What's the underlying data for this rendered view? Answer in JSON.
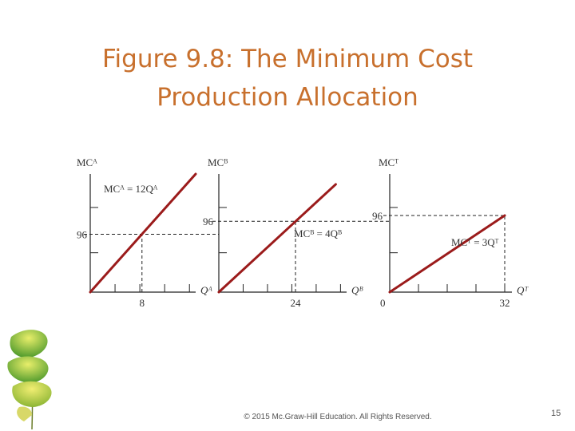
{
  "slide": {
    "title_line1": "Figure 9.8: The Minimum Cost",
    "title_line2": "Production Allocation",
    "footer": "© 2015 Mc.Graw-Hill Education. All Rights Reserved.",
    "page_number": "15"
  },
  "colors": {
    "title": "#c8702d",
    "curve": "#9b1b1b",
    "axis": "#222222"
  },
  "chart_data": [
    {
      "type": "line",
      "ylabel": "MCᴬ",
      "xlabel": "Qᴬ",
      "equation_label": "MCᴬ = 12Qᴬ",
      "xlim": [
        0,
        16.3
      ],
      "ylim": [
        0,
        196
      ],
      "series": [
        {
          "x": [
            0,
            16.3
          ],
          "y": [
            0,
            196
          ]
        }
      ],
      "equilibrium": {
        "x": 8,
        "y": 96,
        "x_label": "8",
        "y_label": "96"
      },
      "x_tick_count": 4,
      "y_tick_count": 2
    },
    {
      "type": "line",
      "ylabel": "MCᴮ",
      "xlabel": "Qᴮ",
      "equation_label": "MCᴮ = 4Qᴮ",
      "xlim": [
        0,
        40
      ],
      "ylim": [
        0,
        160
      ],
      "series": [
        {
          "x": [
            0,
            36.6
          ],
          "y": [
            0,
            146
          ]
        }
      ],
      "equilibrium": {
        "x": 24,
        "y": 96,
        "x_label": "24",
        "y_label": "96"
      },
      "x_tick_count": 5,
      "y_tick_count": 2
    },
    {
      "type": "line",
      "ylabel": "MCᵀ",
      "xlabel": "Qᵀ",
      "equation_label": "MCᵀ = 3Qᵀ",
      "xlim": [
        0,
        34
      ],
      "ylim": [
        0,
        148
      ],
      "series": [
        {
          "x": [
            0,
            32
          ],
          "y": [
            0,
            96
          ]
        }
      ],
      "equilibrium": {
        "x": 32,
        "y": 96,
        "x_label": "32",
        "y_label": "96"
      },
      "origin_label": "0",
      "x_tick_count": 4,
      "y_tick_count": 2
    }
  ]
}
